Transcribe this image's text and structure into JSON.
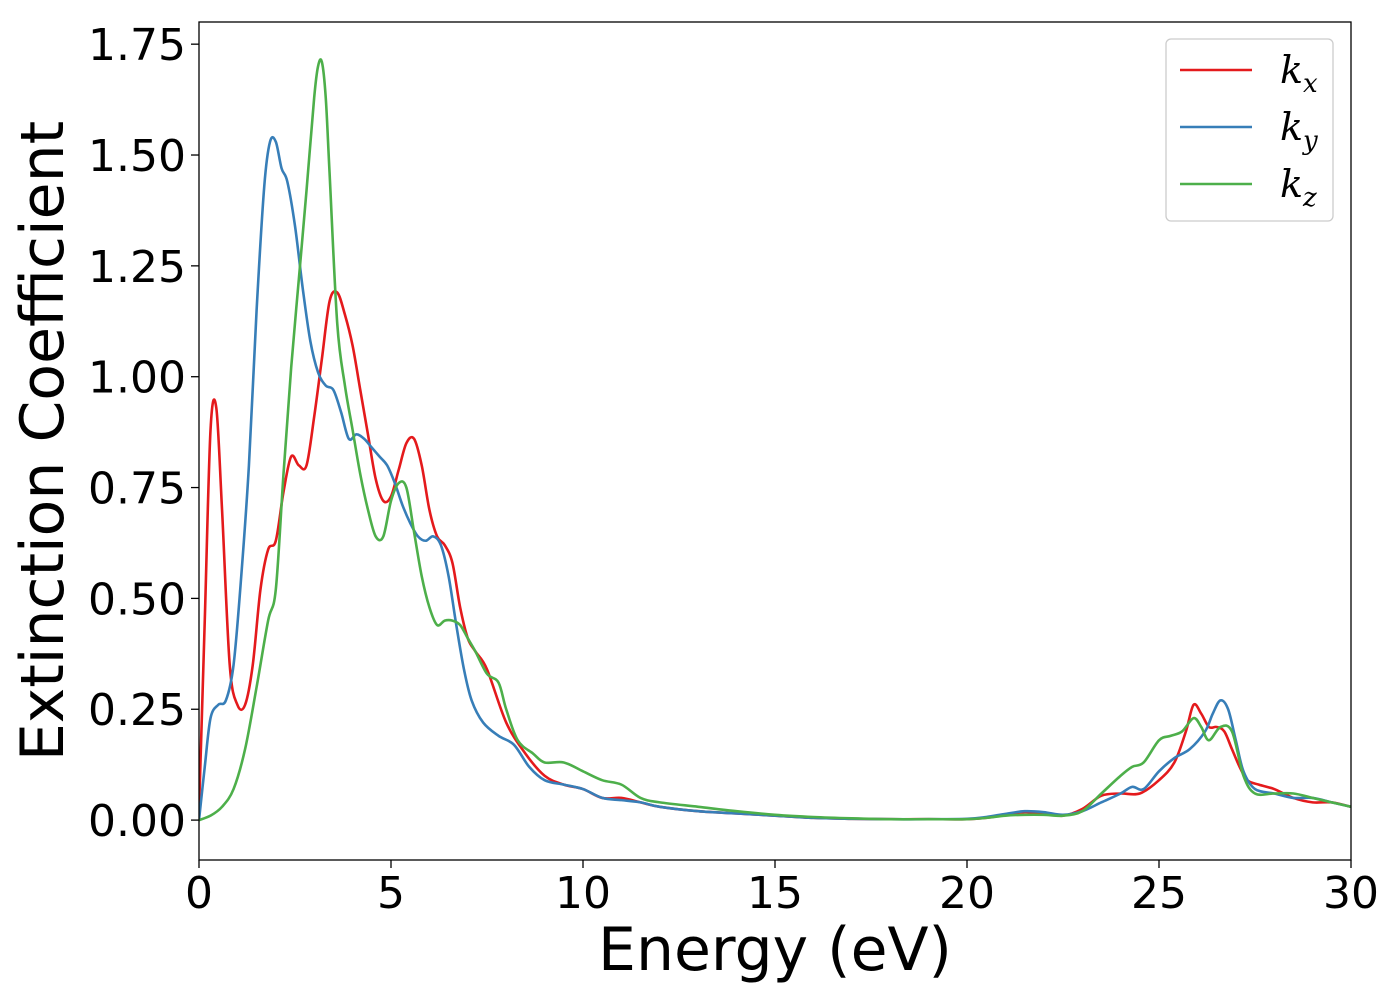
{
  "chart_data": {
    "type": "line",
    "title": "",
    "xlabel": "Energy (eV)",
    "ylabel": "Extinction Coefficient",
    "xlim": [
      0,
      30
    ],
    "ylim": [
      -0.09,
      1.8
    ],
    "xticks": [
      0,
      5,
      10,
      15,
      20,
      25,
      30
    ],
    "xtick_labels": [
      "0",
      "5",
      "10",
      "15",
      "20",
      "25",
      "30"
    ],
    "yticks": [
      0,
      0.25,
      0.5,
      0.75,
      1.0,
      1.25,
      1.5,
      1.75
    ],
    "ytick_labels": [
      "0.00",
      "0.25",
      "0.50",
      "0.75",
      "1.00",
      "1.25",
      "1.50",
      "1.75"
    ],
    "grid": false,
    "legend_position": "top-right",
    "series": [
      {
        "name": "k_x",
        "legend_main": "k",
        "legend_sub": "x",
        "color": "#e41a1c",
        "x": [
          0,
          0.15,
          0.3,
          0.45,
          0.6,
          0.8,
          1.0,
          1.2,
          1.4,
          1.6,
          1.8,
          2.0,
          2.2,
          2.4,
          2.6,
          2.8,
          3.0,
          3.2,
          3.4,
          3.6,
          3.8,
          4.0,
          4.2,
          4.4,
          4.6,
          4.8,
          5.0,
          5.2,
          5.4,
          5.6,
          5.8,
          6.0,
          6.2,
          6.4,
          6.6,
          6.8,
          7.0,
          7.2,
          7.5,
          8.0,
          8.5,
          9.0,
          9.5,
          10.0,
          10.5,
          11.0,
          11.5,
          12.0,
          13.0,
          14.0,
          15.0,
          16.0,
          17.0,
          18.0,
          19.0,
          20.0,
          20.5,
          21.0,
          21.5,
          22.0,
          22.5,
          23.0,
          23.5,
          24.0,
          24.5,
          25.0,
          25.4,
          25.7,
          25.9,
          26.1,
          26.3,
          26.5,
          26.7,
          26.9,
          27.1,
          27.3,
          27.6,
          28.0,
          28.5,
          29.0,
          29.5,
          30.0
        ],
        "y": [
          0.02,
          0.45,
          0.88,
          0.93,
          0.7,
          0.35,
          0.26,
          0.26,
          0.35,
          0.52,
          0.61,
          0.63,
          0.74,
          0.82,
          0.8,
          0.8,
          0.91,
          1.04,
          1.17,
          1.19,
          1.14,
          1.07,
          0.97,
          0.87,
          0.77,
          0.72,
          0.73,
          0.79,
          0.85,
          0.86,
          0.8,
          0.7,
          0.64,
          0.62,
          0.58,
          0.48,
          0.41,
          0.38,
          0.34,
          0.22,
          0.15,
          0.1,
          0.08,
          0.07,
          0.05,
          0.05,
          0.04,
          0.03,
          0.02,
          0.015,
          0.01,
          0.005,
          0.003,
          0.002,
          0.002,
          0.002,
          0.005,
          0.012,
          0.018,
          0.015,
          0.01,
          0.025,
          0.055,
          0.06,
          0.06,
          0.09,
          0.13,
          0.2,
          0.26,
          0.24,
          0.21,
          0.21,
          0.2,
          0.16,
          0.12,
          0.09,
          0.08,
          0.07,
          0.05,
          0.04,
          0.04,
          0.03
        ]
      },
      {
        "name": "k_y",
        "legend_main": "k",
        "legend_sub": "y",
        "color": "#377eb8",
        "x": [
          0,
          0.15,
          0.3,
          0.5,
          0.7,
          0.9,
          1.1,
          1.3,
          1.5,
          1.7,
          1.85,
          2.0,
          2.15,
          2.3,
          2.5,
          2.7,
          2.9,
          3.1,
          3.3,
          3.5,
          3.7,
          3.9,
          4.1,
          4.3,
          4.5,
          4.7,
          4.9,
          5.1,
          5.3,
          5.5,
          5.7,
          5.9,
          6.1,
          6.3,
          6.5,
          6.7,
          6.9,
          7.1,
          7.4,
          7.8,
          8.2,
          8.6,
          9.0,
          9.5,
          10.0,
          10.5,
          11.0,
          11.5,
          12.0,
          13.0,
          14.0,
          15.0,
          16.0,
          17.0,
          18.0,
          19.0,
          20.0,
          20.5,
          21.0,
          21.5,
          22.0,
          22.5,
          23.0,
          23.5,
          24.0,
          24.3,
          24.6,
          25.0,
          25.4,
          25.8,
          26.2,
          26.4,
          26.6,
          26.8,
          27.0,
          27.2,
          27.5,
          28.0,
          28.5,
          29.0,
          29.5,
          30.0
        ],
        "y": [
          0.0,
          0.12,
          0.23,
          0.26,
          0.27,
          0.35,
          0.55,
          0.8,
          1.15,
          1.43,
          1.53,
          1.53,
          1.47,
          1.44,
          1.34,
          1.2,
          1.08,
          1.01,
          0.98,
          0.97,
          0.92,
          0.86,
          0.87,
          0.86,
          0.84,
          0.82,
          0.8,
          0.76,
          0.71,
          0.67,
          0.64,
          0.63,
          0.64,
          0.62,
          0.55,
          0.44,
          0.34,
          0.27,
          0.22,
          0.19,
          0.17,
          0.12,
          0.09,
          0.08,
          0.07,
          0.05,
          0.045,
          0.04,
          0.03,
          0.02,
          0.015,
          0.01,
          0.005,
          0.003,
          0.002,
          0.002,
          0.003,
          0.007,
          0.014,
          0.02,
          0.018,
          0.012,
          0.02,
          0.04,
          0.06,
          0.075,
          0.07,
          0.11,
          0.14,
          0.16,
          0.2,
          0.24,
          0.27,
          0.25,
          0.18,
          0.11,
          0.07,
          0.06,
          0.05,
          0.05,
          0.04,
          0.03
        ]
      },
      {
        "name": "k_z",
        "legend_main": "k",
        "legend_sub": "z",
        "color": "#4daf4a",
        "x": [
          0,
          0.3,
          0.6,
          0.9,
          1.2,
          1.5,
          1.8,
          2.0,
          2.2,
          2.4,
          2.6,
          2.8,
          3.0,
          3.1,
          3.2,
          3.3,
          3.4,
          3.6,
          3.8,
          4.0,
          4.2,
          4.4,
          4.6,
          4.8,
          5.0,
          5.2,
          5.4,
          5.6,
          5.8,
          6.0,
          6.2,
          6.4,
          6.6,
          6.8,
          7.0,
          7.2,
          7.5,
          7.8,
          8.0,
          8.3,
          8.7,
          9.0,
          9.5,
          10.0,
          10.5,
          11.0,
          11.5,
          12.0,
          13.0,
          14.0,
          15.0,
          16.0,
          17.0,
          18.0,
          19.0,
          20.0,
          20.5,
          21.0,
          21.5,
          22.0,
          22.5,
          23.0,
          23.5,
          24.0,
          24.3,
          24.6,
          25.0,
          25.3,
          25.6,
          25.9,
          26.1,
          26.3,
          26.6,
          26.9,
          27.2,
          27.5,
          28.0,
          28.5,
          29.0,
          29.5,
          30.0
        ],
        "y": [
          0.0,
          0.01,
          0.03,
          0.07,
          0.16,
          0.3,
          0.45,
          0.52,
          0.78,
          1.02,
          1.22,
          1.42,
          1.63,
          1.7,
          1.71,
          1.63,
          1.46,
          1.12,
          0.98,
          0.88,
          0.78,
          0.7,
          0.64,
          0.64,
          0.72,
          0.76,
          0.75,
          0.65,
          0.55,
          0.48,
          0.44,
          0.45,
          0.45,
          0.44,
          0.41,
          0.38,
          0.33,
          0.31,
          0.25,
          0.18,
          0.15,
          0.13,
          0.13,
          0.11,
          0.09,
          0.08,
          0.05,
          0.04,
          0.03,
          0.02,
          0.012,
          0.007,
          0.004,
          0.002,
          0.002,
          0.002,
          0.005,
          0.01,
          0.012,
          0.012,
          0.01,
          0.02,
          0.06,
          0.1,
          0.12,
          0.13,
          0.18,
          0.19,
          0.2,
          0.23,
          0.21,
          0.18,
          0.21,
          0.2,
          0.1,
          0.06,
          0.06,
          0.06,
          0.05,
          0.04,
          0.03
        ]
      }
    ]
  }
}
